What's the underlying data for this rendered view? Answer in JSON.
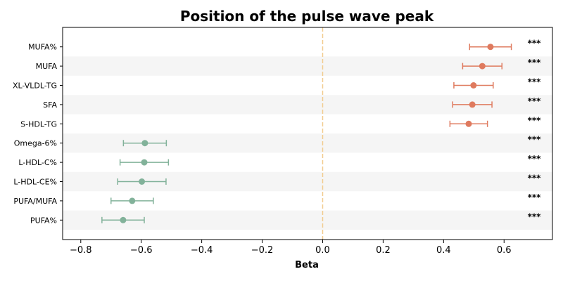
{
  "chart_data": {
    "type": "forest",
    "title": "Position of the pulse wave peak",
    "xlabel": "Beta",
    "xlim": [
      -0.86,
      0.76
    ],
    "xticks": [
      -0.8,
      -0.6,
      -0.4,
      -0.2,
      0.0,
      0.2,
      0.4,
      0.6
    ],
    "xtick_labels": [
      "−0.8",
      "−0.6",
      "−0.4",
      "−0.2",
      "0.0",
      "0.2",
      "0.4",
      "0.6"
    ],
    "reference_line": 0.0,
    "alternating_row_shading": true,
    "colors": {
      "positive": "#df7a5e",
      "negative": "#82b29a",
      "reference": "#f2cc8f",
      "shade": "#f5f5f5"
    },
    "rows": [
      {
        "label": "MUFA%",
        "beta": 0.555,
        "lo": 0.486,
        "hi": 0.624,
        "sig": "***"
      },
      {
        "label": "MUFA",
        "beta": 0.528,
        "lo": 0.463,
        "hi": 0.593,
        "sig": "***"
      },
      {
        "label": "XL-VLDL-TG",
        "beta": 0.499,
        "lo": 0.434,
        "hi": 0.564,
        "sig": "***"
      },
      {
        "label": "SFA",
        "beta": 0.495,
        "lo": 0.43,
        "hi": 0.56,
        "sig": "***"
      },
      {
        "label": "S-HDL-TG",
        "beta": 0.483,
        "lo": 0.421,
        "hi": 0.545,
        "sig": "***"
      },
      {
        "label": "Omega-6%",
        "beta": -0.588,
        "lo": -0.659,
        "hi": -0.517,
        "sig": "***"
      },
      {
        "label": "L-HDL-C%",
        "beta": -0.59,
        "lo": -0.67,
        "hi": -0.51,
        "sig": "***"
      },
      {
        "label": "L-HDL-CE%",
        "beta": -0.598,
        "lo": -0.678,
        "hi": -0.518,
        "sig": "***"
      },
      {
        "label": "PUFA/MUFA",
        "beta": -0.63,
        "lo": -0.7,
        "hi": -0.56,
        "sig": "***"
      },
      {
        "label": "PUFA%",
        "beta": -0.66,
        "lo": -0.73,
        "hi": -0.59,
        "sig": "***"
      }
    ]
  }
}
